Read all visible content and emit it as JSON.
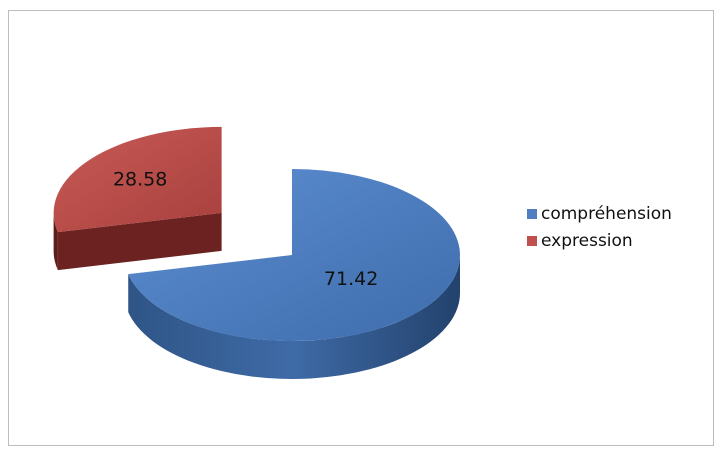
{
  "chart_data": {
    "type": "pie",
    "style": "3d-exploded",
    "title": "",
    "slices": [
      {
        "label": "compréhension",
        "value": 71.42,
        "value_label": "71.42",
        "color": "#4f7fc0",
        "exploded": false
      },
      {
        "label": "expression",
        "value": 28.58,
        "value_label": "28.58",
        "color": "#c0504d",
        "exploded": true
      }
    ],
    "legend_placement": "right"
  }
}
